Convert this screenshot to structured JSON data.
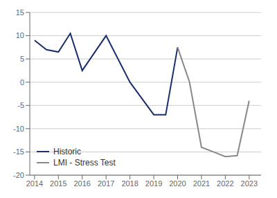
{
  "chart_data": {
    "type": "line",
    "series": [
      {
        "name": "Historic",
        "color": "#1a2e6e",
        "x": [
          2014,
          2014.5,
          2015,
          2015.5,
          2016,
          2017,
          2018,
          2019,
          2019.5,
          2020
        ],
        "values": [
          9,
          7,
          6.5,
          10.5,
          2.5,
          10,
          0,
          -7,
          -7,
          7.5
        ]
      },
      {
        "name": "LMI - Stress Test",
        "color": "#888888",
        "x": [
          2020,
          2020.5,
          2021,
          2021.5,
          2022,
          2022.5,
          2023
        ],
        "values": [
          7.5,
          0,
          -14,
          -15,
          -16,
          -15.8,
          -4
        ]
      }
    ],
    "xlim": [
      2013.8,
      2023.5
    ],
    "xticks": [
      2014,
      2015,
      2016,
      2017,
      2018,
      2019,
      2020,
      2021,
      2022,
      2023
    ],
    "ylim": [
      -20,
      15
    ],
    "yticks": [
      -20,
      -15,
      -10,
      -5,
      0,
      5,
      10,
      15
    ],
    "grid": true,
    "legend": "lower left"
  }
}
